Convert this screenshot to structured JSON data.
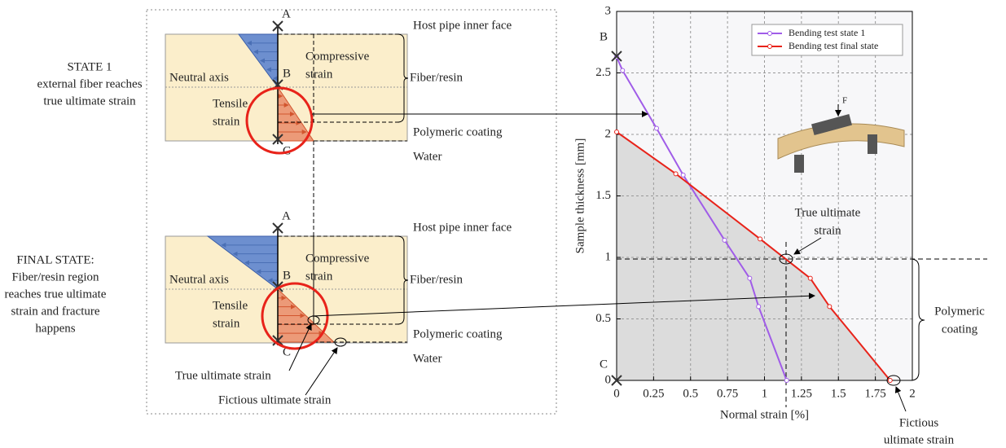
{
  "diagram": {
    "states": [
      [
        "STATE 1",
        "external fiber reaches",
        "true ultimate strain"
      ],
      [
        "FINAL STATE:",
        "Fiber/resin region",
        "reaches true ultimate",
        "strain and fracture",
        "happens"
      ]
    ],
    "panels": [
      {
        "A": "A",
        "B": "B",
        "C": "C",
        "neutral_axis": "Neutral axis",
        "compressive": [
          "Compressive",
          "strain"
        ],
        "tensile": [
          "Tensile",
          "strain"
        ],
        "layers": [
          "Host pipe inner face",
          "Fiber/resin",
          "Polymeric coating",
          "Water"
        ]
      },
      {
        "A": "A",
        "B": "B",
        "C": "C",
        "neutral_axis": "Neutral axis",
        "compressive": [
          "Compressive",
          "strain"
        ],
        "tensile": [
          "Tensile",
          "strain"
        ],
        "layers": [
          "Host pipe inner face",
          "Fiber/resin",
          "Polymeric coating",
          "Water"
        ],
        "callouts": [
          "True ultimate strain",
          "Fictious ultimate strain"
        ]
      }
    ]
  },
  "chart_data": {
    "type": "line",
    "x_label": "Normal strain [%]",
    "y_label": "Sample thickness [mm]",
    "xlim": [
      0,
      2
    ],
    "xticks": [
      0,
      0.25,
      0.5,
      0.75,
      1,
      1.25,
      1.5,
      1.75,
      2
    ],
    "ylim": [
      0,
      3
    ],
    "yticks": [
      0,
      0.5,
      1,
      1.5,
      2,
      2.5,
      3
    ],
    "grid": true,
    "legend": "upper right",
    "series": [
      {
        "name": "Bending test state 1",
        "color": "#a05ce8",
        "x": [
          0,
          0.04,
          0.27,
          0.45,
          0.73,
          0.9,
          0.96,
          1.15
        ],
        "values": [
          2.63,
          2.52,
          2.05,
          1.67,
          1.14,
          0.83,
          0.6,
          0
        ]
      },
      {
        "name": "Bending test final state",
        "color": "#e8231a",
        "x": [
          0,
          0.4,
          0.97,
          1.31,
          1.44,
          1.85
        ],
        "values": [
          2.02,
          1.68,
          1.15,
          0.83,
          0.6,
          0
        ]
      }
    ],
    "annotations": {
      "B": "B",
      "C": "C",
      "true_ultimate": [
        "True ultimate",
        "strain"
      ],
      "coating": [
        "Polymeric",
        "coating"
      ],
      "fictious": [
        "Fictious",
        "ultimate strain"
      ],
      "force": "F"
    }
  }
}
